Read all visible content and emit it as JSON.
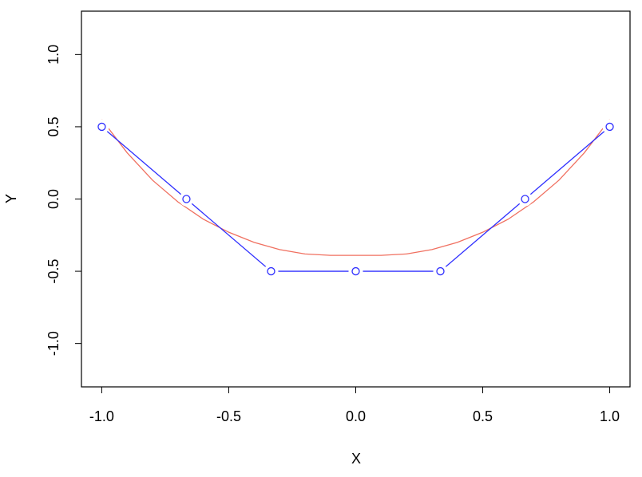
{
  "chart_data": {
    "type": "line",
    "x_label": "X",
    "y_label": "Y",
    "xlim": [
      -1.08,
      1.08
    ],
    "ylim": [
      -1.3,
      1.3
    ],
    "xticks": [
      {
        "value": -1,
        "label": "-1.0"
      },
      {
        "value": -0.5,
        "label": "-0.5"
      },
      {
        "value": 0,
        "label": "0.0"
      },
      {
        "value": 0.5,
        "label": "0.5"
      },
      {
        "value": 1,
        "label": "1.0"
      }
    ],
    "yticks": [
      {
        "value": -1,
        "label": "-1.0"
      },
      {
        "value": -0.5,
        "label": "-0.5"
      },
      {
        "value": 0,
        "label": "0.0"
      },
      {
        "value": 0.5,
        "label": "0.5"
      },
      {
        "value": 1,
        "label": "1.0"
      }
    ],
    "series": [
      {
        "color": "#f07060",
        "markers": false,
        "x": [
          -1,
          -0.9,
          -0.8,
          -0.7,
          -0.6,
          -0.5,
          -0.4,
          -0.3,
          -0.2,
          -0.1,
          0,
          0.1,
          0.2,
          0.3,
          0.4,
          0.5,
          0.6,
          0.7,
          0.8,
          0.9,
          1
        ],
        "values": [
          0.55,
          0.32,
          0.13,
          -0.02,
          -0.14,
          -0.23,
          -0.3,
          -0.35,
          -0.38,
          -0.39,
          -0.39,
          -0.39,
          -0.38,
          -0.35,
          -0.3,
          -0.23,
          -0.14,
          -0.02,
          0.13,
          0.32,
          0.55
        ]
      },
      {
        "color": "#3030ff",
        "markers": true,
        "x": [
          -1,
          -0.6667,
          -0.3333,
          0,
          0.3333,
          0.6667,
          1
        ],
        "values": [
          0.5,
          0,
          -0.5,
          -0.5,
          -0.5,
          0,
          0.5
        ]
      }
    ]
  }
}
